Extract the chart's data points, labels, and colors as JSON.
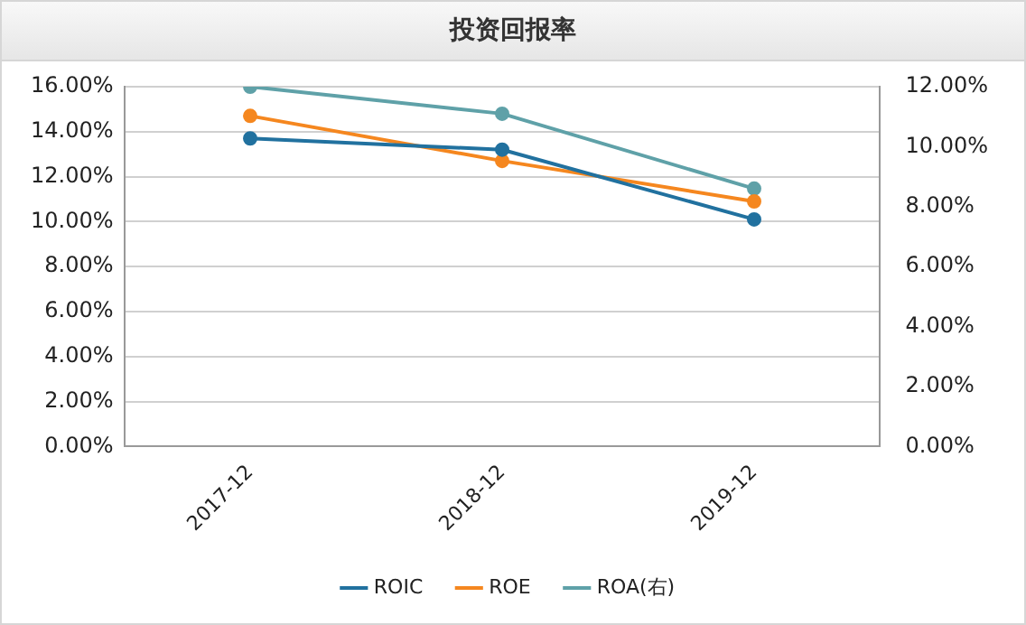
{
  "chart_data": {
    "type": "line",
    "title": "投资回报率",
    "categories": [
      "2017-12",
      "2018-12",
      "2019-12"
    ],
    "series": [
      {
        "name": "ROIC",
        "color": "#21719f",
        "values": [
          13.7,
          13.2,
          10.1
        ]
      },
      {
        "name": "ROE",
        "color": "#f5871f",
        "values": [
          14.7,
          12.7,
          10.9
        ]
      },
      {
        "name": "ROA(右)",
        "color": "#5fa1a8",
        "values": [
          12.0,
          11.1,
          8.6
        ],
        "axis": "y2"
      }
    ],
    "ylim": [
      0,
      16
    ],
    "yticks": [
      {
        "value": 0,
        "label": "0.00%"
      },
      {
        "value": 2,
        "label": "2.00%"
      },
      {
        "value": 4,
        "label": "4.00%"
      },
      {
        "value": 6,
        "label": "6.00%"
      },
      {
        "value": 8,
        "label": "8.00%"
      },
      {
        "value": 10,
        "label": "10.00%"
      },
      {
        "value": 12,
        "label": "12.00%"
      },
      {
        "value": 14,
        "label": "14.00%"
      },
      {
        "value": 16,
        "label": "16.00%"
      }
    ],
    "y2lim": [
      0,
      12
    ],
    "y2ticks": [
      {
        "value": 0,
        "label": "0.00%"
      },
      {
        "value": 2,
        "label": "2.00%"
      },
      {
        "value": 4,
        "label": "4.00%"
      },
      {
        "value": 6,
        "label": "6.00%"
      },
      {
        "value": 8,
        "label": "8.00%"
      },
      {
        "value": 10,
        "label": "10.00%"
      },
      {
        "value": 12,
        "label": "12.00%"
      }
    ],
    "grid": "y",
    "legend": "bottom",
    "marker": "circle",
    "line_style": "solid"
  }
}
